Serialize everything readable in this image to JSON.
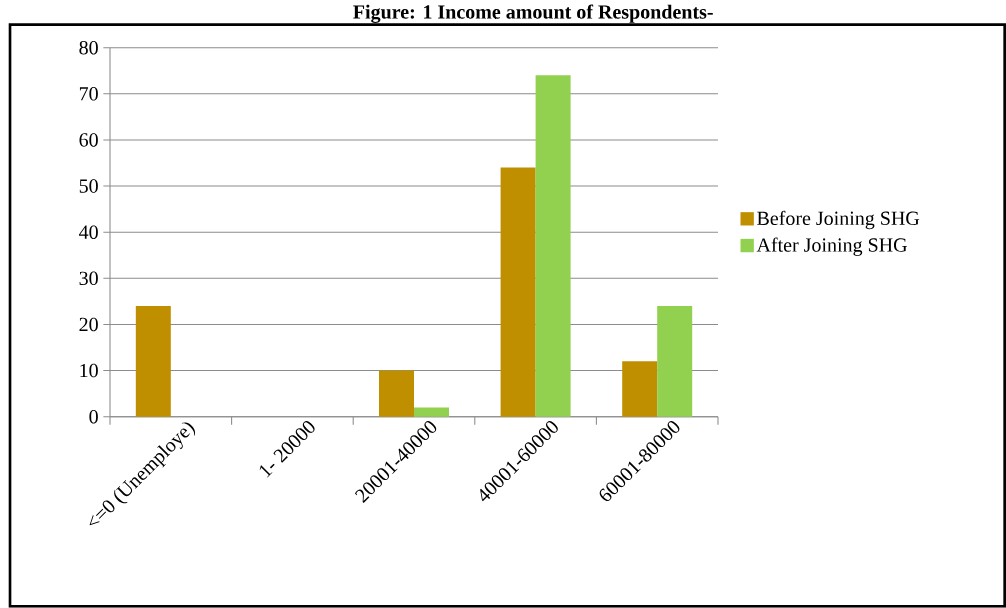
{
  "chart_data": {
    "type": "bar",
    "title": "Figure: 1 Income amount of Respondents-",
    "categories": [
      "<=0 (Unemploye)",
      "1- 20000",
      "20001-40000",
      "40001-60000",
      "60001-80000"
    ],
    "series": [
      {
        "name": "Before Joining SHG",
        "color": "#bf8f00",
        "values": [
          24,
          0,
          10,
          54,
          12
        ]
      },
      {
        "name": "After Joining SHG",
        "color": "#92d050",
        "values": [
          0,
          0,
          2,
          74,
          24
        ]
      }
    ],
    "ylim": [
      0,
      80
    ],
    "yticks": [
      0,
      10,
      20,
      30,
      40,
      50,
      60,
      70,
      80
    ],
    "grid": "y",
    "legend": "right"
  }
}
